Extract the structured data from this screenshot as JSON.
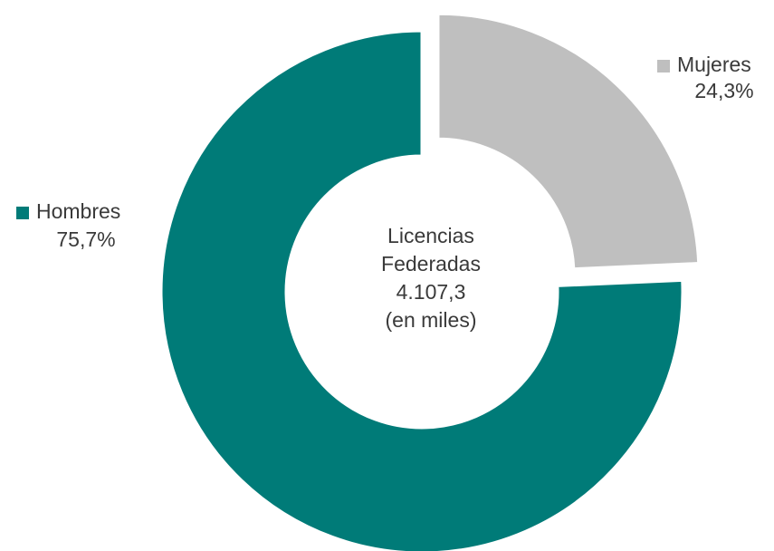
{
  "chart_data": {
    "type": "donut",
    "categories": [
      "Hombres",
      "Mujeres"
    ],
    "values": [
      75.7,
      24.3
    ],
    "value_labels": [
      "75,7%",
      "24,3%"
    ],
    "colors": [
      "#007b78",
      "#bfbfbf"
    ],
    "center_text": [
      "Licencias",
      "Federadas",
      "4.107,3",
      "(en miles)"
    ]
  }
}
